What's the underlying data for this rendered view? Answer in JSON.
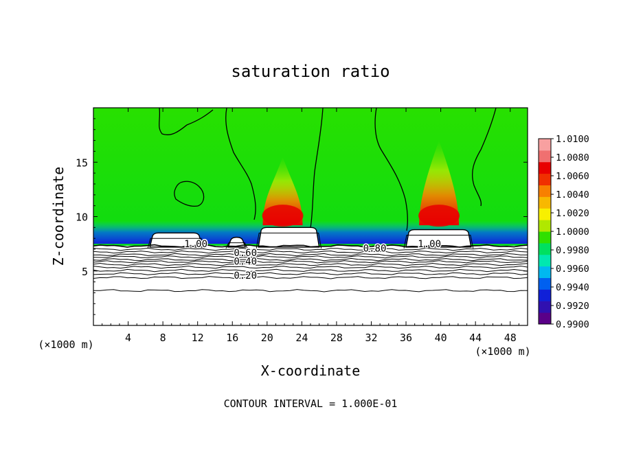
{
  "chart_data": {
    "type": "heatmap",
    "title": "saturation ratio",
    "xlabel": "X-coordinate",
    "ylabel": "Z-coordinate",
    "x_unit": "(×1000 m)",
    "y_unit": "(×1000 m)",
    "xlim": [
      0,
      50
    ],
    "ylim": [
      0,
      20
    ],
    "x_ticks": [
      4,
      8,
      12,
      16,
      20,
      24,
      28,
      32,
      36,
      40,
      44,
      48
    ],
    "y_ticks": [
      5,
      10,
      15
    ],
    "footer": "CONTOUR INTERVAL = 1.000E-01",
    "colorbar": {
      "min": 0.99,
      "max": 1.01,
      "ticks": [
        "1.0100",
        "1.0080",
        "1.0060",
        "1.0040",
        "1.0020",
        "1.0000",
        "0.9980",
        "0.9960",
        "0.9940",
        "0.9920",
        "0.9900"
      ],
      "colors": [
        "#5a0088",
        "#3010b0",
        "#1020d8",
        "#0060f0",
        "#00b8f0",
        "#00e8b0",
        "#00e060",
        "#30e000",
        "#b0e800",
        "#f8f000",
        "#f8b800",
        "#f88000",
        "#f03000",
        "#e80000",
        "#f07070",
        "#f8a0a0"
      ]
    },
    "contour_labels": [
      {
        "text": "1.00",
        "x": 11.8,
        "y": 7.5
      },
      {
        "text": "0.60",
        "x": 17.5,
        "y": 6.7
      },
      {
        "text": "0.40",
        "x": 17.5,
        "y": 5.9
      },
      {
        "text": "0.20",
        "x": 17.5,
        "y": 4.6
      },
      {
        "text": "0.80",
        "x": 32.4,
        "y": 7.1
      },
      {
        "text": "1.00",
        "x": 38.7,
        "y": 7.5
      }
    ],
    "cloud_regions": [
      {
        "x_start": 6.5,
        "x_end": 12.5,
        "top": 8.5
      },
      {
        "x_start": 15.5,
        "x_end": 17.5,
        "top": 8.1
      },
      {
        "x_start": 19.0,
        "x_end": 26.0,
        "top": 9.0
      },
      {
        "x_start": 36.0,
        "x_end": 43.5,
        "top": 8.8
      }
    ],
    "plumes": [
      {
        "x": 21.8,
        "top": 15.5,
        "peak": 1.008
      },
      {
        "x": 39.8,
        "top": 17.0,
        "peak": 1.008
      }
    ]
  }
}
